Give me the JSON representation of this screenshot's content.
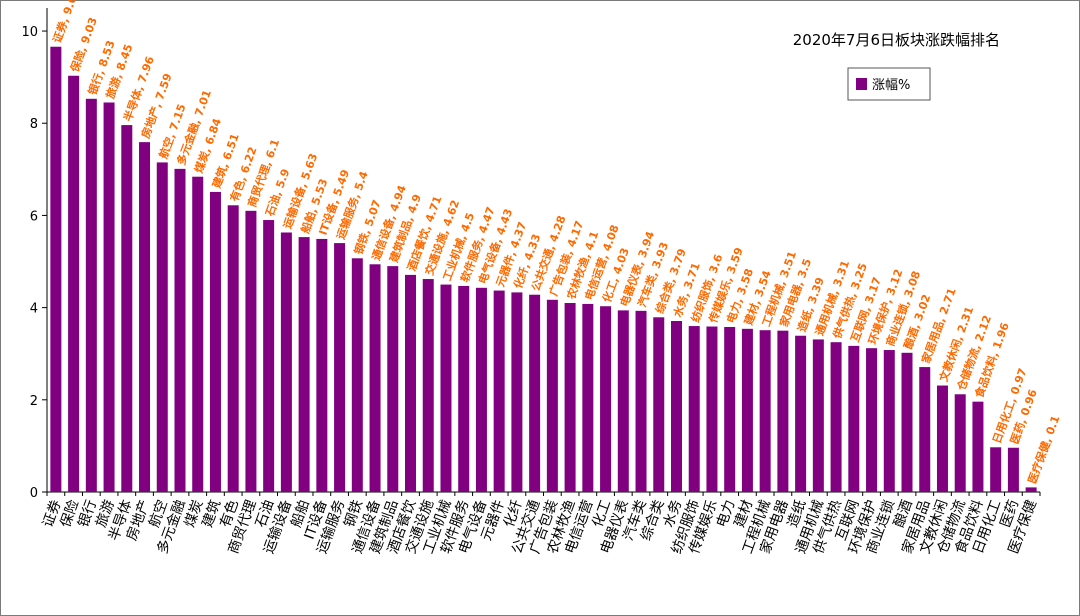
{
  "chart_data": {
    "type": "bar",
    "title": "2020年7月6日板块涨跌幅排名",
    "xlabel": "",
    "ylabel": "",
    "ylim": [
      0,
      10.5
    ],
    "yticks": [
      0,
      2,
      4,
      6,
      8,
      10
    ],
    "grid": false,
    "legend": {
      "position": "top-right",
      "entries": [
        "涨幅%"
      ]
    },
    "bar_color": "#800080",
    "label_color": "#ff6a00",
    "categories": [
      "证券",
      "保险",
      "银行",
      "旅游",
      "半导体",
      "房地产",
      "航空",
      "多元金融",
      "煤炭",
      "建筑",
      "有色",
      "商贸代理",
      "石油",
      "运输设备",
      "船舶",
      "IT设备",
      "运输服务",
      "钢铁",
      "通信设备",
      "建筑制品",
      "酒店餐饮",
      "交通设施",
      "工业机械",
      "软件服务",
      "电气设备",
      "元器件",
      "化纤",
      "公共交通",
      "广告包装",
      "农林牧渔",
      "电信运营",
      "化工",
      "电器仪表",
      "汽车类",
      "综合类",
      "水务",
      "纺织服饰",
      "传媒娱乐",
      "电力",
      "建材",
      "工程机械",
      "家用电器",
      "造纸",
      "通用机械",
      "供气供热",
      "互联网",
      "环境保护",
      "商业连锁",
      "酿酒",
      "家居用品",
      "文教休闲",
      "仓储物流",
      "食品饮料",
      "日用化工",
      "医药",
      "医疗保健"
    ],
    "series": [
      {
        "name": "涨幅%",
        "values": [
          9.66,
          9.03,
          8.53,
          8.45,
          7.96,
          7.59,
          7.15,
          7.01,
          6.84,
          6.51,
          6.22,
          6.1,
          5.9,
          5.63,
          5.53,
          5.49,
          5.4,
          5.07,
          4.94,
          4.9,
          4.71,
          4.62,
          4.5,
          4.47,
          4.43,
          4.37,
          4.33,
          4.28,
          4.17,
          4.1,
          4.08,
          4.03,
          3.94,
          3.93,
          3.79,
          3.71,
          3.6,
          3.59,
          3.58,
          3.54,
          3.51,
          3.5,
          3.39,
          3.31,
          3.25,
          3.17,
          3.12,
          3.08,
          3.02,
          2.71,
          2.31,
          2.12,
          1.96,
          0.97,
          0.96,
          0.1
        ]
      }
    ]
  }
}
